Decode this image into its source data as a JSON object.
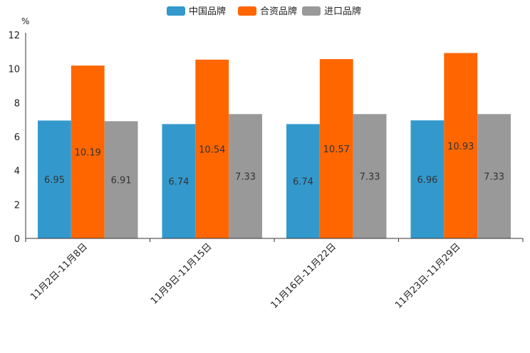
{
  "chart_data": {
    "type": "bar",
    "unit": "%",
    "categories": [
      "11月2日-11月8日",
      "11月9日-11月15日",
      "11月16日-11月22日",
      "11月23日-11月29日"
    ],
    "series": [
      {
        "name": "中国品牌",
        "color": "#3399cc",
        "values": [
          6.95,
          6.74,
          6.74,
          6.96
        ],
        "labels": [
          "6.95",
          "6.74",
          "6.74",
          "6.96"
        ]
      },
      {
        "name": "合资品牌",
        "color": "#ff6600",
        "values": [
          10.19,
          10.54,
          10.57,
          10.93
        ],
        "labels": [
          "10.19",
          "10.54",
          "10.57",
          "10.93"
        ]
      },
      {
        "name": "进口品牌",
        "color": "#999999",
        "values": [
          6.91,
          7.33,
          7.33,
          7.33
        ],
        "labels": [
          "6.91",
          "7.33",
          "7.33",
          "7.33"
        ]
      }
    ],
    "yticks": [
      "0",
      "2",
      "4",
      "6",
      "8",
      "10",
      "12"
    ],
    "ylim": [
      0,
      12
    ],
    "legend_position": "top-center",
    "grid": false
  }
}
